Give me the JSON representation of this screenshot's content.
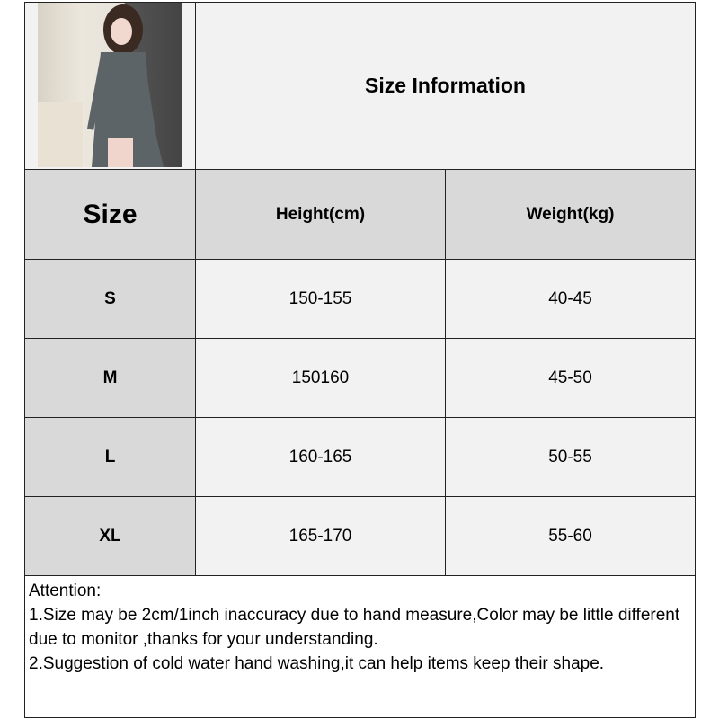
{
  "title": "Size Information",
  "headers": {
    "size": "Size",
    "height": "Height(cm)",
    "weight": "Weight(kg)"
  },
  "rows": [
    {
      "size": "S",
      "height": "150-155",
      "weight": "40-45"
    },
    {
      "size": "M",
      "height": "150160",
      "weight": "45-50"
    },
    {
      "size": "L",
      "height": "160-165",
      "weight": "50-55"
    },
    {
      "size": "XL",
      "height": "165-170",
      "weight": "55-60"
    }
  ],
  "notes": {
    "heading": "Attention:",
    "line1": "1.Size may be 2cm/1inch inaccuracy due to hand measure,Color may be little different due to monitor ,thanks for your understanding.",
    "line2": "2.Suggestion of cold water hand washing,it can help items keep their shape."
  },
  "colors": {
    "header_bg": "#d9d9d9",
    "cell_bg": "#f2f2f2",
    "border": "#222222"
  }
}
